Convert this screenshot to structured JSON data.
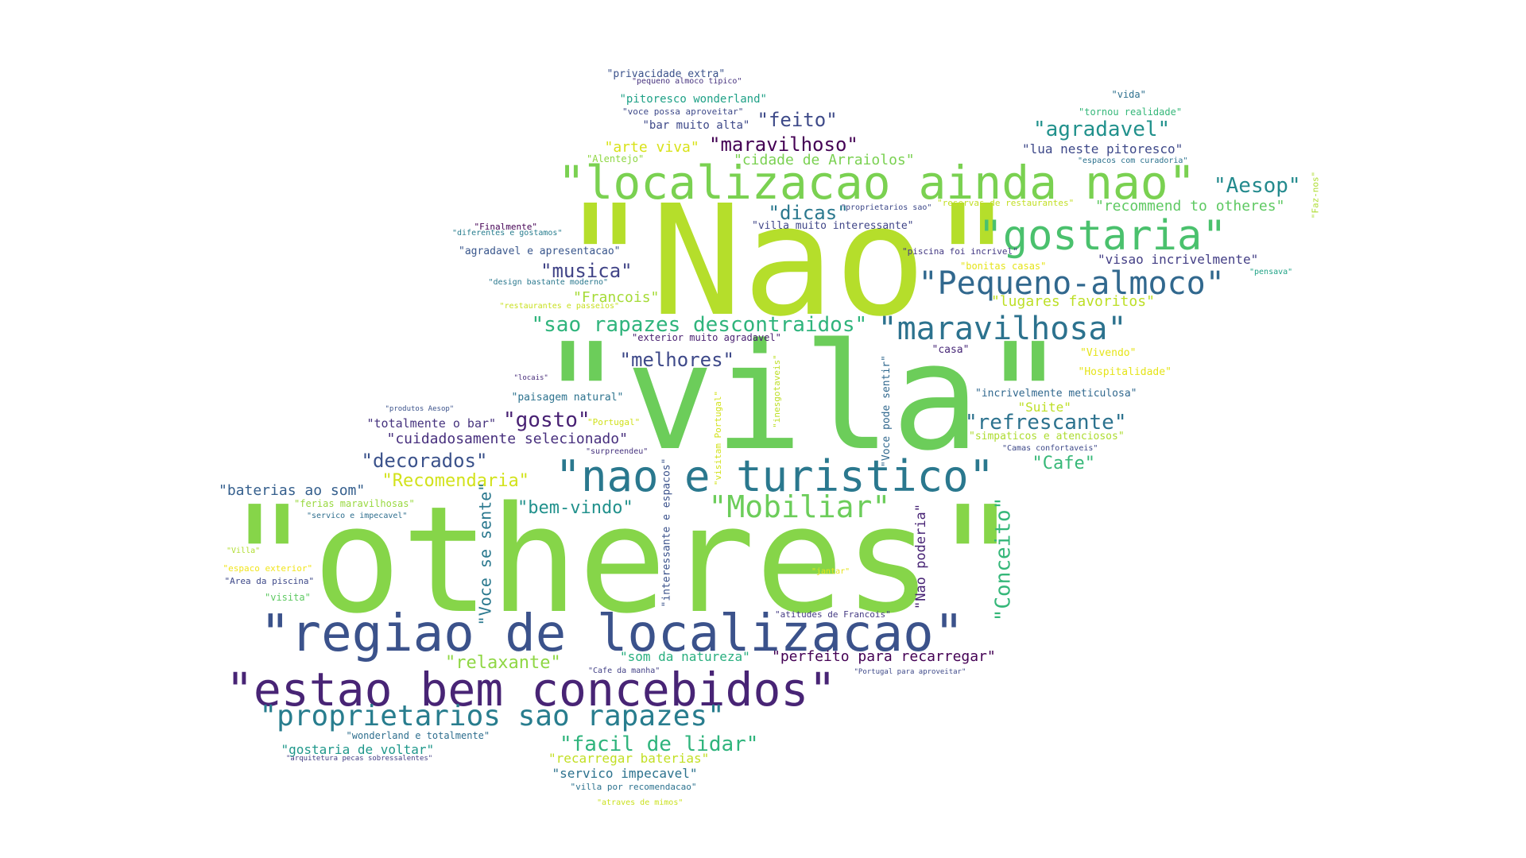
{
  "words": [
    {
      "text": "\"Nao\"",
      "color": "#b5de2b",
      "vertical": false
    },
    {
      "text": "\"vila\"",
      "color": "#6ccd5a",
      "vertical": false
    },
    {
      "text": "\"otheres\"",
      "color": "#86d549",
      "vertical": false
    },
    {
      "text": "\"localizacao ainda nao\"",
      "color": "#7ad151",
      "vertical": false
    },
    {
      "text": "\"regiao de localizacao\"",
      "color": "#3b528b",
      "vertical": false
    },
    {
      "text": "\"estao bem concebidos\"",
      "color": "#482475",
      "vertical": false
    },
    {
      "text": "\"nao e turistico\"",
      "color": "#2a788e",
      "vertical": false
    },
    {
      "text": "\"gostaria\"",
      "color": "#4ac16d",
      "vertical": false
    },
    {
      "text": "\"Pequeno-almoco\"",
      "color": "#31688e",
      "vertical": false
    },
    {
      "text": "\"maravilhosa\"",
      "color": "#2c728e",
      "vertical": false
    },
    {
      "text": "\"proprietarios sao rapazes\"",
      "color": "#287d8e",
      "vertical": false
    },
    {
      "text": "\"Mobiliar\"",
      "color": "#6ccd5a",
      "vertical": false
    },
    {
      "text": "\"sao rapazes descontraidos\"",
      "color": "#2fb47c",
      "vertical": false
    },
    {
      "text": "\"facil de lidar\"",
      "color": "#2fb47c",
      "vertical": false
    },
    {
      "text": "\"Aesop\"",
      "color": "#238a8d",
      "vertical": false
    },
    {
      "text": "\"agradavel\"",
      "color": "#21918c",
      "vertical": false
    },
    {
      "text": "\"refrescante\"",
      "color": "#2c728e",
      "vertical": false
    },
    {
      "text": "\"melhores\"",
      "color": "#3e4989",
      "vertical": false
    },
    {
      "text": "\"decorados\"",
      "color": "#3b528b",
      "vertical": false
    },
    {
      "text": "\"musica\"",
      "color": "#414487",
      "vertical": false
    },
    {
      "text": "\"dicas\"",
      "color": "#2a788e",
      "vertical": false
    },
    {
      "text": "\"feito\"",
      "color": "#3e4a89",
      "vertical": false
    },
    {
      "text": "\"maravilhoso\"",
      "color": "#440154",
      "vertical": false
    },
    {
      "text": "\"gosto\"",
      "color": "#482173",
      "vertical": false
    },
    {
      "text": "\"Recomendaria\"",
      "color": "#d2e21b",
      "vertical": false
    },
    {
      "text": "\"bem-vindo\"",
      "color": "#21918c",
      "vertical": false
    },
    {
      "text": "\"Cafe\"",
      "color": "#37b878",
      "vertical": false
    },
    {
      "text": "\"relaxante\"",
      "color": "#8fd744",
      "vertical": false
    },
    {
      "text": "\"cuidadosamente selecionado\"",
      "color": "#472f7d",
      "vertical": false
    },
    {
      "text": "\"arte viva\"",
      "color": "#d8e219",
      "vertical": false
    },
    {
      "text": "\"perfeito para recarregar\"",
      "color": "#440154",
      "vertical": false
    },
    {
      "text": "\"recommend to otheres\"",
      "color": "#5ec962",
      "vertical": false
    },
    {
      "text": "\"lua neste pitoresco\"",
      "color": "#3e4989",
      "vertical": false
    },
    {
      "text": "\"visao incrivelmente\"",
      "color": "#433e85",
      "vertical": false
    },
    {
      "text": "\"cidade de Arraiolos\"",
      "color": "#7ad151",
      "vertical": false
    },
    {
      "text": "\"lugares favoritos\"",
      "color": "#bddf26",
      "vertical": false
    },
    {
      "text": "\"baterias ao som\"",
      "color": "#355f8d",
      "vertical": false
    },
    {
      "text": "\"totalmente o bar\"",
      "color": "#46337e",
      "vertical": false
    },
    {
      "text": "\"Francois\"",
      "color": "#a5db36",
      "vertical": false
    },
    {
      "text": "\"servico impecavel\"",
      "color": "#2c728e",
      "vertical": false
    },
    {
      "text": "\"gostaria de voltar\"",
      "color": "#1f988b",
      "vertical": false
    },
    {
      "text": "\"recarregar baterias\"",
      "color": "#c2df23",
      "vertical": false
    },
    {
      "text": "\"som da natureza\"",
      "color": "#29af7f",
      "vertical": false
    },
    {
      "text": "\"pitoresco wonderland\"",
      "color": "#1fa187",
      "vertical": false
    },
    {
      "text": "\"bar muito alta\"",
      "color": "#3e4989",
      "vertical": false
    },
    {
      "text": "\"privacidade extra\"",
      "color": "#3b528b",
      "vertical": false
    },
    {
      "text": "\"paisagem natural\"",
      "color": "#2c728e",
      "vertical": false
    },
    {
      "text": "\"incrivelmente meticulosa\"",
      "color": "#31688e",
      "vertical": false
    },
    {
      "text": "\"Suite\"",
      "color": "#bddf26",
      "vertical": false
    },
    {
      "text": "\"Hospitalidade\"",
      "color": "#e5e419",
      "vertical": false
    },
    {
      "text": "\"Vivendo\"",
      "color": "#e5e419",
      "vertical": false
    },
    {
      "text": "\"casa\"",
      "color": "#482878",
      "vertical": false
    },
    {
      "text": "\"villa muito interessante\"",
      "color": "#404688",
      "vertical": false
    },
    {
      "text": "\"agradavel e apresentacao\"",
      "color": "#39568c",
      "vertical": false
    },
    {
      "text": "\"simpaticos e atenciosos\"",
      "color": "#addc30",
      "vertical": false
    },
    {
      "text": "\"vida\"",
      "color": "#2d708e",
      "vertical": false
    },
    {
      "text": "\"tornou realidade\"",
      "color": "#35b779",
      "vertical": false
    },
    {
      "text": "\"Alentejo\"",
      "color": "#8fd744",
      "vertical": false
    },
    {
      "text": "\"voce possa aproveitar\"",
      "color": "#3e4989",
      "vertical": false
    },
    {
      "text": "\"pequeno almoco tipico\"",
      "color": "#46327e",
      "vertical": false
    },
    {
      "text": "\"espacos com curadoria\"",
      "color": "#2c728e",
      "vertical": false
    },
    {
      "text": "\"reservas de restaurantes\"",
      "color": "#c2df23",
      "vertical": false
    },
    {
      "text": "\"proprietarios sao\"",
      "color": "#3e4989",
      "vertical": false
    },
    {
      "text": "\"Finalmente\"",
      "color": "#440154",
      "vertical": false
    },
    {
      "text": "\"diferentes e gostamos\"",
      "color": "#287d8e",
      "vertical": false
    },
    {
      "text": "\"piscina foi incrivel\"",
      "color": "#443983",
      "vertical": false
    },
    {
      "text": "\"bonitas casas\"",
      "color": "#e5e419",
      "vertical": false
    },
    {
      "text": "\"pensava\"",
      "color": "#20a386",
      "vertical": false
    },
    {
      "text": "\"design bastante moderno\"",
      "color": "#2a788e",
      "vertical": false
    },
    {
      "text": "\"restaurantes e passeios\"",
      "color": "#c8e020",
      "vertical": false
    },
    {
      "text": "\"exterior muito agradavel\"",
      "color": "#481f70",
      "vertical": false
    },
    {
      "text": "\"locais\"",
      "color": "#472c7a",
      "vertical": false
    },
    {
      "text": "\"produtos Aesop\"",
      "color": "#3b528b",
      "vertical": false
    },
    {
      "text": "\"Portugal\"",
      "color": "#d0e11c",
      "vertical": false
    },
    {
      "text": "\"surpreendeu\"",
      "color": "#46337e",
      "vertical": false
    },
    {
      "text": "\"Camas confortaveis\"",
      "color": "#3e4989",
      "vertical": false
    },
    {
      "text": "\"ferias maravilhosas\"",
      "color": "#98d83e",
      "vertical": false
    },
    {
      "text": "\"servico e impecavel\"",
      "color": "#2e6e8e",
      "vertical": false
    },
    {
      "text": "\"Villa\"",
      "color": "#b0dd2f",
      "vertical": false
    },
    {
      "text": "\"espaco exterior\"",
      "color": "#f1e51d",
      "vertical": false
    },
    {
      "text": "\"Area da piscina\"",
      "color": "#3e4989",
      "vertical": false
    },
    {
      "text": "\"visita\"",
      "color": "#5ec962",
      "vertical": false
    },
    {
      "text": "\"jantar\"",
      "color": "#e5e419",
      "vertical": false
    },
    {
      "text": "\"atitudes de Francois\"",
      "color": "#443a83",
      "vertical": false
    },
    {
      "text": "\"Cafe da manha\"",
      "color": "#424086",
      "vertical": false
    },
    {
      "text": "\"Portugal para aproveitar\"",
      "color": "#3e4989",
      "vertical": false
    },
    {
      "text": "\"wonderland e totalmente\"",
      "color": "#2e6e8e",
      "vertical": false
    },
    {
      "text": "\"arquitetura pecas sobressalentes\"",
      "color": "#433e85",
      "vertical": false
    },
    {
      "text": "\"villa por recomendacao\"",
      "color": "#2c728e",
      "vertical": false
    },
    {
      "text": "\"atraves de mimos\"",
      "color": "#cae11f",
      "vertical": false
    },
    {
      "text": "\"Faz-nos\"",
      "color": "#addc30",
      "vertical": true
    },
    {
      "text": "\"Voce pode sentir\"",
      "color": "#31688e",
      "vertical": true
    },
    {
      "text": "\"inesgotaveis\"",
      "color": "#bddf26",
      "vertical": true
    },
    {
      "text": "\"visitam Portugal\"",
      "color": "#d2e21b",
      "vertical": true
    },
    {
      "text": "\"interessante e espacos\"",
      "color": "#3b528b",
      "vertical": true
    },
    {
      "text": "\"Voce se sente\"",
      "color": "#2a788e",
      "vertical": true
    },
    {
      "text": "\"Nao poderia\"",
      "color": "#482475",
      "vertical": true
    },
    {
      "text": "\"Conceito\"",
      "color": "#35b779",
      "vertical": true
    }
  ]
}
